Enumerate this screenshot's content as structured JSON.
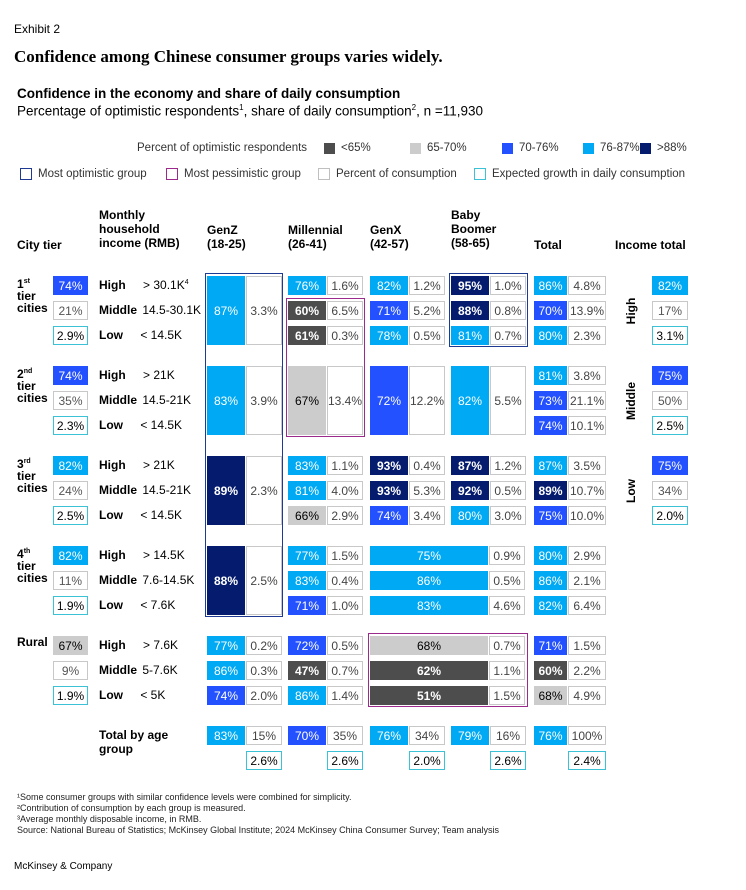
{
  "header": {
    "exhibit": "Exhibit 2",
    "headline": "Confidence among Chinese consumer groups varies widely.",
    "title": "Confidence in the economy and share of daily consumption",
    "subtitle_prefix": "Percentage of optimistic respondents",
    "subtitle_sup1": "1",
    "subtitle_mid": ", share of daily consumption",
    "subtitle_sup2": "2",
    "subtitle_suffix": ", n =11,930"
  },
  "legend": {
    "title": "Percent of optimistic respondents",
    "bins": [
      {
        "label": "<65%",
        "color": "#4d4d4d"
      },
      {
        "label": "65-70%",
        "color": "#cccccc"
      },
      {
        "label": "70-76%",
        "color": "#2451ff"
      },
      {
        "label": "76-87%",
        "color": "#00a9f4"
      },
      {
        "label": ">88%",
        "color": "#051c6e"
      }
    ],
    "outlines": [
      {
        "label": "Most optimistic group",
        "color": "#1f3a93"
      },
      {
        "label": "Most pessimistic group",
        "color": "#9c2a8c"
      },
      {
        "label": "Percent of consumption",
        "color": "#bfbfbf"
      },
      {
        "label": "Expected growth in daily consumption",
        "color": "#3cc2d6"
      }
    ]
  },
  "columns": {
    "city_tier": "City tier",
    "income_l1": "Monthly",
    "income_l2": "household",
    "income_l3": "income (RMB)",
    "genz_l1": "GenZ",
    "genz_l2": "(18-25)",
    "mill_l1": "Millennial",
    "mill_l2": "(26-41)",
    "genx_l1": "GenX",
    "genx_l2": "(42-57)",
    "boom_l1": "Baby",
    "boom_l2": "Boomer",
    "boom_l3": "(58-65)",
    "total": "Total",
    "income_total": "Income total"
  },
  "tiers": [
    {
      "l1": "1",
      "sup": "st",
      "l2": "tier",
      "l3": "cities",
      "conf": [
        "74%",
        "21%",
        "2.9%"
      ]
    },
    {
      "l1": "2",
      "sup": "nd",
      "l2": "tier",
      "l3": "cities",
      "conf": [
        "74%",
        "35%",
        "2.3%"
      ]
    },
    {
      "l1": "3",
      "sup": "rd",
      "l2": "tier",
      "l3": "cities",
      "conf": [
        "82%",
        "24%",
        "2.5%"
      ]
    },
    {
      "l1": "4",
      "sup": "th",
      "l2": "tier",
      "l3": "cities",
      "conf": [
        "82%",
        "11%",
        "1.9%"
      ]
    },
    {
      "l1": "Rural",
      "sup": "",
      "l2": "",
      "l3": "",
      "conf": [
        "67%",
        "9%",
        "1.9%"
      ]
    }
  ],
  "income_rows": [
    [
      [
        "High",
        "> 30.1K",
        "4"
      ],
      [
        "Middle",
        "14.5-30.1K",
        ""
      ],
      [
        "Low",
        "< 14.5K",
        ""
      ]
    ],
    [
      [
        "High",
        "> 21K",
        ""
      ],
      [
        "Middle",
        "14.5-21K",
        ""
      ],
      [
        "Low",
        "< 14.5K",
        ""
      ]
    ],
    [
      [
        "High",
        "> 21K",
        ""
      ],
      [
        "Middle",
        "14.5-21K",
        ""
      ],
      [
        "Low",
        "< 14.5K",
        ""
      ]
    ],
    [
      [
        "High",
        "> 14.5K",
        ""
      ],
      [
        "Middle",
        "7.6-14.5K",
        ""
      ],
      [
        "Low",
        "< 7.6K",
        ""
      ]
    ],
    [
      [
        "High",
        "> 7.6K",
        ""
      ],
      [
        "Middle",
        "5-7.6K",
        ""
      ],
      [
        "Low",
        "< 5K",
        ""
      ]
    ]
  ],
  "chart_data": {
    "type": "table",
    "cells": {
      "genz": [
        {
          "pct": "87%",
          "share": "3.3%",
          "color": "#00a9f4"
        },
        {
          "pct": "83%",
          "share": "3.9%",
          "color": "#00a9f4"
        },
        {
          "pct": "89%",
          "share": "2.3%",
          "color": "#051c6e"
        },
        {
          "pct": "88%",
          "share": "2.5%",
          "color": "#051c6e"
        },
        {
          "rows": [
            [
              "77%",
              "0.2%",
              "#00a9f4"
            ],
            [
              "86%",
              "0.3%",
              "#00a9f4"
            ],
            [
              "74%",
              "2.0%",
              "#2451ff"
            ]
          ]
        }
      ],
      "millennial": [
        {
          "rows": [
            [
              "76%",
              "1.6%",
              "#00a9f4"
            ],
            [
              "60%",
              "6.5%",
              "#4d4d4d"
            ],
            [
              "61%",
              "0.3%",
              "#4d4d4d"
            ]
          ]
        },
        {
          "pct": "67%",
          "share": "13.4%",
          "color": "#cccccc"
        },
        {
          "rows": [
            [
              "83%",
              "1.1%",
              "#00a9f4"
            ],
            [
              "81%",
              "4.0%",
              "#00a9f4"
            ],
            [
              "66%",
              "2.9%",
              "#cccccc"
            ]
          ]
        },
        {
          "rows": [
            [
              "77%",
              "1.5%",
              "#00a9f4"
            ],
            [
              "83%",
              "0.4%",
              "#00a9f4"
            ],
            [
              "71%",
              "1.0%",
              "#2451ff"
            ]
          ]
        },
        {
          "rows": [
            [
              "72%",
              "0.5%",
              "#2451ff"
            ],
            [
              "47%",
              "0.7%",
              "#4d4d4d"
            ],
            [
              "86%",
              "1.4%",
              "#00a9f4"
            ]
          ]
        }
      ],
      "genx": [
        {
          "rows": [
            [
              "82%",
              "1.2%",
              "#00a9f4"
            ],
            [
              "71%",
              "5.2%",
              "#2451ff"
            ],
            [
              "78%",
              "0.5%",
              "#00a9f4"
            ]
          ]
        },
        {
          "pct": "72%",
          "share": "12.2%",
          "color": "#2451ff"
        },
        {
          "rows": [
            [
              "93%",
              "0.4%",
              "#051c6e"
            ],
            [
              "93%",
              "5.3%",
              "#051c6e"
            ],
            [
              "74%",
              "3.4%",
              "#2451ff"
            ]
          ]
        }
      ],
      "boomer": [
        {
          "rows": [
            [
              "95%",
              "1.0%",
              "#051c6e"
            ],
            [
              "88%",
              "0.8%",
              "#051c6e"
            ],
            [
              "81%",
              "0.7%",
              "#00a9f4"
            ]
          ]
        },
        {
          "pct": "82%",
          "share": "5.5%",
          "color": "#00a9f4"
        },
        {
          "rows": [
            [
              "87%",
              "1.2%",
              "#051c6e"
            ],
            [
              "92%",
              "0.5%",
              "#051c6e"
            ],
            [
              "80%",
              "3.0%",
              "#00a9f4"
            ]
          ]
        }
      ],
      "genx_boomer_merged": [
        null,
        null,
        null,
        {
          "rows": [
            [
              "75%",
              "0.9%",
              "#00a9f4"
            ],
            [
              "86%",
              "0.5%",
              "#00a9f4"
            ],
            [
              "83%",
              "4.6%",
              "#00a9f4"
            ]
          ]
        },
        {
          "rows": [
            [
              "68%",
              "0.7%",
              "#cccccc"
            ],
            [
              "62%",
              "1.1%",
              "#4d4d4d"
            ],
            [
              "51%",
              "1.5%",
              "#4d4d4d"
            ]
          ]
        }
      ],
      "total": [
        [
          [
            "86%",
            "4.8%",
            "#00a9f4"
          ],
          [
            "70%",
            "13.9%",
            "#2451ff"
          ],
          [
            "80%",
            "2.3%",
            "#00a9f4"
          ]
        ],
        [
          [
            "81%",
            "3.8%",
            "#00a9f4"
          ],
          [
            "73%",
            "21.1%",
            "#2451ff"
          ],
          [
            "74%",
            "10.1%",
            "#2451ff"
          ]
        ],
        [
          [
            "87%",
            "3.5%",
            "#00a9f4"
          ],
          [
            "89%",
            "10.7%",
            "#051c6e"
          ],
          [
            "75%",
            "10.0%",
            "#2451ff"
          ]
        ],
        [
          [
            "80%",
            "2.9%",
            "#00a9f4"
          ],
          [
            "86%",
            "2.1%",
            "#00a9f4"
          ],
          [
            "82%",
            "6.4%",
            "#00a9f4"
          ]
        ],
        [
          [
            "71%",
            "1.5%",
            "#2451ff"
          ],
          [
            "60%",
            "2.2%",
            "#4d4d4d"
          ],
          [
            "68%",
            "4.9%",
            "#cccccc"
          ]
        ]
      ]
    },
    "income_total": [
      {
        "label": "High",
        "values": [
          [
            "82%",
            "#00a9f4"
          ],
          [
            "17%",
            ""
          ],
          [
            "3.1%",
            ""
          ]
        ]
      },
      {
        "label": "Middle",
        "values": [
          [
            "75%",
            "#2451ff"
          ],
          [
            "50%",
            ""
          ],
          [
            "2.5%",
            ""
          ]
        ]
      },
      {
        "label": "Low",
        "values": [
          [
            "75%",
            "#2451ff"
          ],
          [
            "34%",
            ""
          ],
          [
            "2.0%",
            ""
          ]
        ]
      }
    ],
    "total_by_age": {
      "label_l1": "Total by age",
      "label_l2": "group",
      "groups": [
        {
          "pct": "83%",
          "share": "15%",
          "growth": "2.6%",
          "color": "#00a9f4"
        },
        {
          "pct": "70%",
          "share": "35%",
          "growth": "2.6%",
          "color": "#2451ff"
        },
        {
          "pct": "76%",
          "share": "34%",
          "growth": "2.0%",
          "color": "#00a9f4"
        },
        {
          "pct": "79%",
          "share": "16%",
          "growth": "2.6%",
          "color": "#00a9f4"
        },
        {
          "pct": "76%",
          "share": "100%",
          "growth": "2.4%",
          "color": "#00a9f4"
        }
      ]
    }
  },
  "notes": [
    "¹Some consumer groups with similar confidence levels were combined for simplicity.",
    "²Contribution of consumption by each group is measured.",
    "³Average monthly disposable income, in RMB.",
    " Source: National Bureau of Statistics; McKinsey Global Institute; 2024 McKinsey China Consumer Survey; Team analysis"
  ],
  "brand": "McKinsey & Company"
}
